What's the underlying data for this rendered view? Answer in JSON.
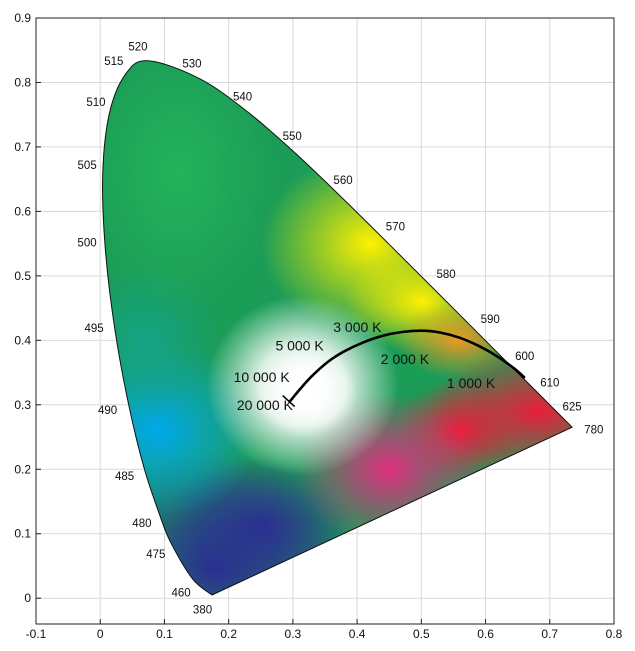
{
  "chart_data": {
    "type": "scatter",
    "title": "",
    "xlabel": "",
    "ylabel": "",
    "xlim": [
      -0.1,
      0.8
    ],
    "ylim": [
      -0.04,
      0.9
    ],
    "grid": true,
    "x_ticks": [
      "-0.1",
      "0",
      "0.1",
      "0.2",
      "0.3",
      "0.4",
      "0.5",
      "0.6",
      "0.7",
      "0.8"
    ],
    "y_ticks": [
      "0",
      "0.1",
      "0.2",
      "0.3",
      "0.4",
      "0.5",
      "0.6",
      "0.7",
      "0.8",
      "0.9"
    ],
    "spectral_locus": [
      {
        "wavelength": "380",
        "x": 0.1741,
        "y": 0.005
      },
      {
        "wavelength": "460",
        "x": 0.144,
        "y": 0.0297
      },
      {
        "wavelength": "475",
        "x": 0.1096,
        "y": 0.0868
      },
      {
        "wavelength": "480",
        "x": 0.0913,
        "y": 0.1327
      },
      {
        "wavelength": "485",
        "x": 0.0687,
        "y": 0.2007
      },
      {
        "wavelength": "490",
        "x": 0.0454,
        "y": 0.295
      },
      {
        "wavelength": "495",
        "x": 0.0235,
        "y": 0.4127
      },
      {
        "wavelength": "500",
        "x": 0.0082,
        "y": 0.5384
      },
      {
        "wavelength": "505",
        "x": 0.0039,
        "y": 0.6548
      },
      {
        "wavelength": "510",
        "x": 0.0139,
        "y": 0.7502
      },
      {
        "wavelength": "515",
        "x": 0.0389,
        "y": 0.812
      },
      {
        "wavelength": "520",
        "x": 0.0743,
        "y": 0.8338
      },
      {
        "wavelength": "530",
        "x": 0.1547,
        "y": 0.8059
      },
      {
        "wavelength": "540",
        "x": 0.2296,
        "y": 0.7543
      },
      {
        "wavelength": "550",
        "x": 0.3016,
        "y": 0.6923
      },
      {
        "wavelength": "560",
        "x": 0.3731,
        "y": 0.6245
      },
      {
        "wavelength": "570",
        "x": 0.4441,
        "y": 0.5547
      },
      {
        "wavelength": "580",
        "x": 0.5125,
        "y": 0.4866
      },
      {
        "wavelength": "590",
        "x": 0.5752,
        "y": 0.4242
      },
      {
        "wavelength": "600",
        "x": 0.627,
        "y": 0.3725
      },
      {
        "wavelength": "610",
        "x": 0.6658,
        "y": 0.334
      },
      {
        "wavelength": "625",
        "x": 0.7006,
        "y": 0.2993
      },
      {
        "wavelength": "780",
        "x": 0.7347,
        "y": 0.2653
      }
    ],
    "planckian_locus": [
      {
        "x": 0.295,
        "y": 0.305
      },
      {
        "x": 0.31,
        "y": 0.323
      },
      {
        "x": 0.33,
        "y": 0.345
      },
      {
        "x": 0.355,
        "y": 0.367
      },
      {
        "x": 0.38,
        "y": 0.383
      },
      {
        "x": 0.41,
        "y": 0.397
      },
      {
        "x": 0.44,
        "y": 0.407
      },
      {
        "x": 0.47,
        "y": 0.413
      },
      {
        "x": 0.5,
        "y": 0.415
      },
      {
        "x": 0.53,
        "y": 0.412
      },
      {
        "x": 0.56,
        "y": 0.404
      },
      {
        "x": 0.59,
        "y": 0.391
      },
      {
        "x": 0.62,
        "y": 0.374
      },
      {
        "x": 0.645,
        "y": 0.356
      },
      {
        "x": 0.66,
        "y": 0.343
      }
    ],
    "temperature_labels": [
      {
        "text": "20 000 K",
        "x": 0.3,
        "y": 0.3
      },
      {
        "text": "10 000 K",
        "x": 0.295,
        "y": 0.343
      },
      {
        "text": "5 000 K",
        "x": 0.348,
        "y": 0.392
      },
      {
        "text": "3 000 K",
        "x": 0.438,
        "y": 0.421
      },
      {
        "text": "2 000 K",
        "x": 0.512,
        "y": 0.371
      },
      {
        "text": "1 000 K",
        "x": 0.615,
        "y": 0.334
      }
    ],
    "colors": {
      "green": "#1a9a4e",
      "yellow": "#f7e600",
      "red": "#e8233c",
      "magenta": "#d9307f",
      "blue": "#2a2f8f",
      "cyan": "#00a8e8",
      "white_point": "#ffffff",
      "grid": "#d9d9d9",
      "axis": "#222222",
      "locus_line": "#000000"
    }
  }
}
